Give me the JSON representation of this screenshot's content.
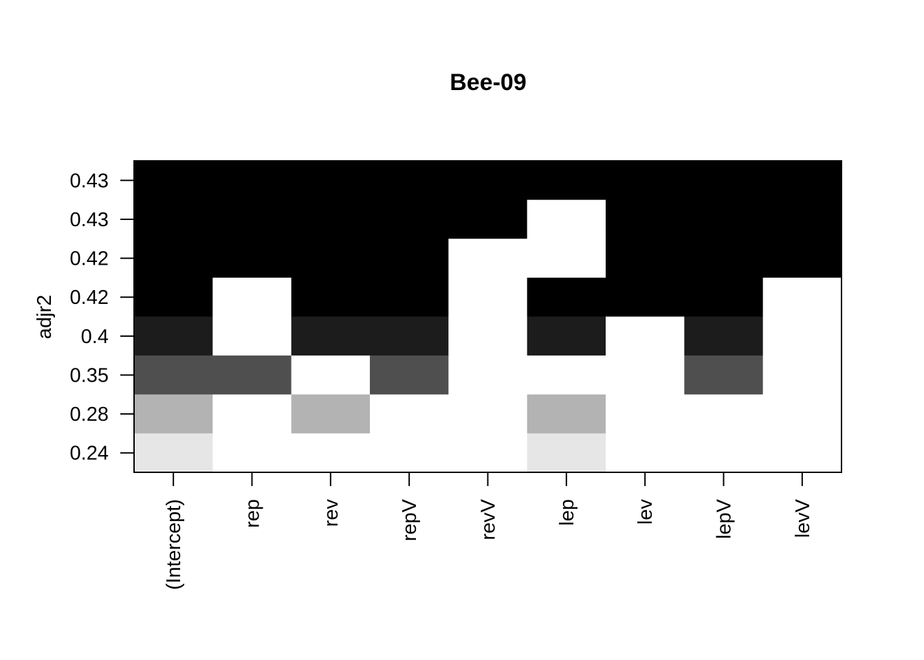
{
  "chart_data": {
    "type": "heatmap",
    "title": "Bee-09",
    "xlabel": "",
    "ylabel": "adjr2",
    "x_categories": [
      "(Intercept)",
      "rep",
      "rev",
      "repV",
      "revV",
      "lep",
      "lev",
      "lepV",
      "levV"
    ],
    "y_categories_top_to_bottom": [
      "0.43",
      "0.43",
      "0.42",
      "0.42",
      "0.4",
      "0.35",
      "0.28",
      "0.24"
    ],
    "cell_fill_colors": {
      "0.43": "#000000",
      "0.42": "#000000",
      "0.4": "#1c1c1c",
      "0.35": "#4f4f4f",
      "0.28": "#b3b3b3",
      "0.24": "#e6e6e6",
      "excluded": "#ffffff"
    },
    "included_rows_top_to_bottom": [
      [
        1,
        1,
        1,
        1,
        1,
        1,
        1,
        1,
        1
      ],
      [
        1,
        1,
        1,
        1,
        1,
        0,
        1,
        1,
        1
      ],
      [
        1,
        1,
        1,
        1,
        0,
        0,
        1,
        1,
        1
      ],
      [
        1,
        0,
        1,
        1,
        0,
        1,
        1,
        1,
        0
      ],
      [
        1,
        0,
        1,
        1,
        0,
        1,
        0,
        1,
        0
      ],
      [
        1,
        1,
        0,
        1,
        0,
        0,
        0,
        1,
        0
      ],
      [
        1,
        0,
        1,
        0,
        0,
        1,
        0,
        0,
        0
      ],
      [
        1,
        0,
        0,
        0,
        0,
        1,
        0,
        0,
        0
      ]
    ]
  }
}
